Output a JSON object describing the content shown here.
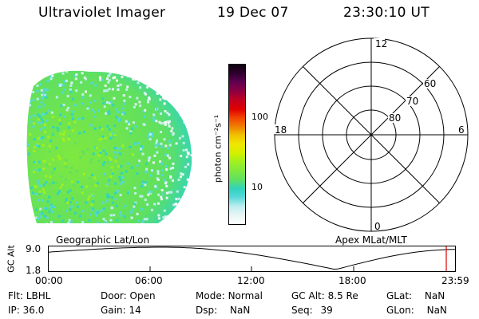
{
  "header": {
    "title": "Ultraviolet Imager",
    "date": "19 Dec 07",
    "time": "23:30:10 UT"
  },
  "colorbar": {
    "label": "photon cm⁻²s⁻¹",
    "tick_labels": [
      "100",
      "10"
    ],
    "colors": [
      "#ffffff",
      "#e6f4f4",
      "#bfeeee",
      "#55d8d8",
      "#30d4c0",
      "#60e060",
      "#7ee840",
      "#a0f020",
      "#d0f000",
      "#f0e800",
      "#f0c000",
      "#f08000",
      "#f04000",
      "#e00000",
      "#c00020",
      "#900040",
      "#600050",
      "#300030",
      "#100010"
    ]
  },
  "polar": {
    "lat_labels": [
      "80",
      "70",
      "60"
    ],
    "mlt_labels": {
      "top": "12",
      "left": "18",
      "right": "6",
      "bottom": "0"
    },
    "footer_label": "Apex MLat/MLT"
  },
  "aurora_image": {
    "footer_label": "Geographic Lat/Lon"
  },
  "altitude_plot": {
    "ylabel": "GC Alt",
    "y_top": "9.0",
    "y_bottom": "1.8",
    "x_ticks": [
      "00:00",
      "06:00",
      "12:00",
      "18:00",
      "23:59"
    ],
    "current_marker_color": "#e00000"
  },
  "info": {
    "flt_label": "Flt:",
    "flt_value": "LBHL",
    "ip_label": "IP:",
    "ip_value": "36.0",
    "door_label": "Door:",
    "door_value": "Open",
    "gain_label": "Gain:",
    "gain_value": "14",
    "mode_label": "Mode:",
    "mode_value": "Normal",
    "dsp_label": "Dsp:",
    "dsp_value": "NaN",
    "gcalt_label": "GC Alt:",
    "gcalt_value": "8.5 Re",
    "seq_label": "Seq:",
    "seq_value": "39",
    "glat_label": "GLat:",
    "glat_value": "NaN",
    "glon_label": "GLon:",
    "glon_value": "NaN"
  }
}
